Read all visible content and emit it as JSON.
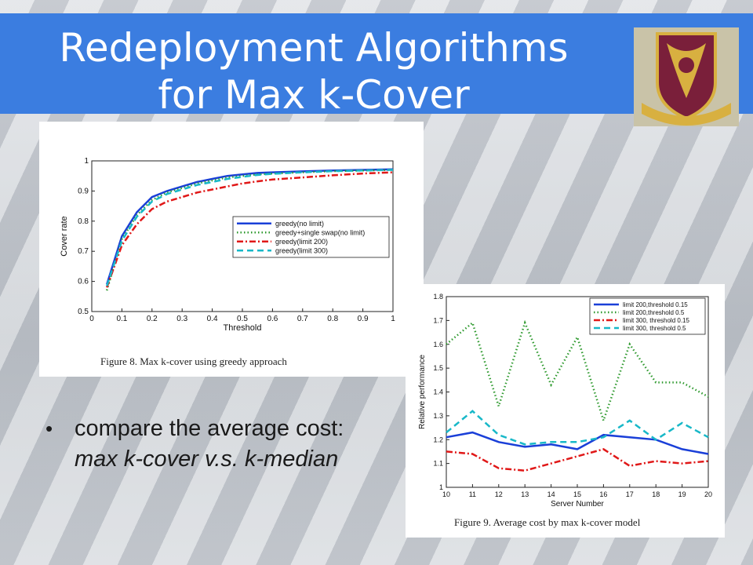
{
  "slide": {
    "title_line1": "Redeployment Algorithms",
    "title_line2": "for Max k-Cover",
    "bullet_plain": "compare the average cost: ",
    "bullet_italic": "max k-cover v.s. k-median"
  },
  "colors": {
    "title_bar": "#3b7de0",
    "blue": "#1a3fd8",
    "green": "#2f9a2f",
    "red": "#e01818",
    "cyan": "#18b8c8"
  },
  "chart_data": [
    {
      "type": "line",
      "caption": "Figure 8.   Max k-cover using greedy approach",
      "xlabel": "Threshold",
      "ylabel": "Cover rate",
      "xlim": [
        0,
        1
      ],
      "ylim": [
        0.5,
        1
      ],
      "xticks": [
        "0",
        "0.1",
        "0.2",
        "0.3",
        "0.4",
        "0.5",
        "0.6",
        "0.7",
        "0.8",
        "0.9",
        "1"
      ],
      "yticks": [
        "0.5",
        "0.6",
        "0.7",
        "0.8",
        "0.9",
        "1"
      ],
      "legend_position": "center-right",
      "x": [
        0.05,
        0.1,
        0.15,
        0.2,
        0.25,
        0.3,
        0.35,
        0.4,
        0.45,
        0.5,
        0.55,
        0.6,
        0.7,
        0.8,
        0.9,
        1.0
      ],
      "series": [
        {
          "name": "greedy(no limit)",
          "color": "#1a3fd8",
          "dash": "solid",
          "values": [
            0.59,
            0.75,
            0.83,
            0.88,
            0.9,
            0.915,
            0.93,
            0.94,
            0.95,
            0.955,
            0.96,
            0.962,
            0.965,
            0.968,
            0.97,
            0.972
          ]
        },
        {
          "name": "greedy+single swap(no limit)",
          "color": "#2f9a2f",
          "dash": "dotted",
          "values": [
            0.57,
            0.74,
            0.82,
            0.87,
            0.895,
            0.91,
            0.925,
            0.935,
            0.945,
            0.95,
            0.955,
            0.958,
            0.962,
            0.966,
            0.968,
            0.97
          ]
        },
        {
          "name": "greedy(limit 200)",
          "color": "#e01818",
          "dash": "dashdot",
          "values": [
            0.58,
            0.72,
            0.79,
            0.84,
            0.865,
            0.88,
            0.895,
            0.905,
            0.915,
            0.925,
            0.932,
            0.938,
            0.945,
            0.952,
            0.958,
            0.962
          ]
        },
        {
          "name": "greedy(limit 300)",
          "color": "#18b8c8",
          "dash": "dashed",
          "values": [
            0.585,
            0.735,
            0.815,
            0.865,
            0.89,
            0.905,
            0.92,
            0.93,
            0.94,
            0.947,
            0.953,
            0.957,
            0.962,
            0.966,
            0.968,
            0.97
          ]
        }
      ]
    },
    {
      "type": "line",
      "caption": "Figure 9.   Average cost by max k-cover model",
      "xlabel": "Server Number",
      "ylabel": "Relative performance",
      "xlim": [
        10,
        20
      ],
      "ylim": [
        1,
        1.8
      ],
      "xticks": [
        "10",
        "11",
        "12",
        "13",
        "14",
        "15",
        "16",
        "17",
        "18",
        "19",
        "20"
      ],
      "yticks": [
        "1",
        "1.1",
        "1.2",
        "1.3",
        "1.4",
        "1.5",
        "1.6",
        "1.7",
        "1.8"
      ],
      "legend_position": "top-right",
      "x": [
        10,
        11,
        12,
        13,
        14,
        15,
        16,
        17,
        18,
        19,
        20
      ],
      "series": [
        {
          "name": "limit 200,threshold 0.15",
          "color": "#1a3fd8",
          "dash": "solid",
          "values": [
            1.21,
            1.23,
            1.19,
            1.17,
            1.18,
            1.16,
            1.22,
            1.21,
            1.2,
            1.16,
            1.14
          ]
        },
        {
          "name": "limit 200,threshold 0.5",
          "color": "#2f9a2f",
          "dash": "dotted",
          "values": [
            1.6,
            1.69,
            1.34,
            1.69,
            1.43,
            1.63,
            1.28,
            1.6,
            1.44,
            1.44,
            1.38
          ]
        },
        {
          "name": "limit 300, threshold 0.15",
          "color": "#e01818",
          "dash": "dashdot",
          "values": [
            1.15,
            1.14,
            1.08,
            1.07,
            1.1,
            1.13,
            1.16,
            1.09,
            1.11,
            1.1,
            1.11
          ]
        },
        {
          "name": "limit 300, threshold 0.5",
          "color": "#18b8c8",
          "dash": "dashed",
          "values": [
            1.23,
            1.32,
            1.22,
            1.18,
            1.19,
            1.19,
            1.21,
            1.28,
            1.2,
            1.27,
            1.21
          ]
        }
      ]
    }
  ]
}
